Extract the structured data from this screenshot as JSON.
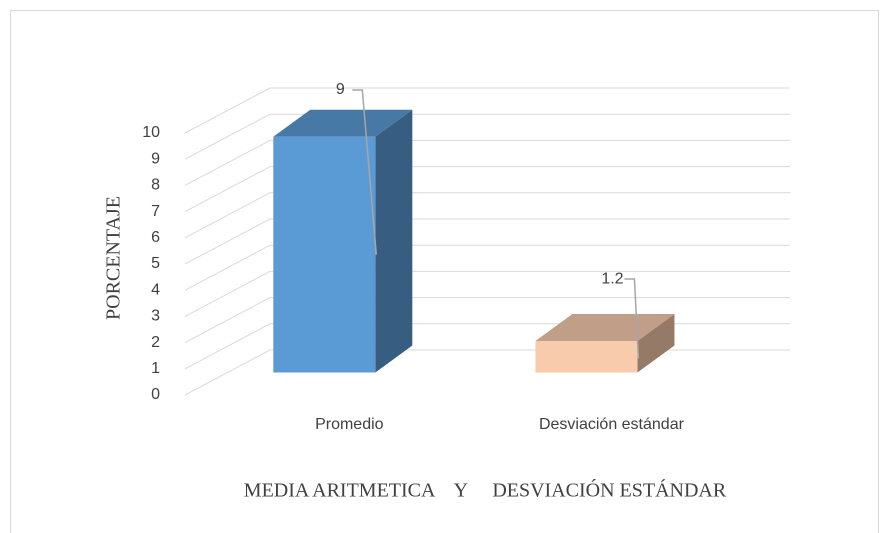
{
  "chart_data": {
    "type": "bar3d",
    "y_axis_label": "PORCENTAJE",
    "x_axis_label": "MEDIA ARITMETICA    Y     DESVIACIÓN ESTÁNDAR",
    "categories": [
      "Promedio",
      "Desviación estándar"
    ],
    "values": [
      9,
      1.2
    ],
    "colors": [
      "#5b9bd5",
      "#f8cbad"
    ],
    "ylim": [
      0,
      10
    ],
    "yticks": [
      0,
      1,
      2,
      3,
      4,
      5,
      6,
      7,
      8,
      9,
      10
    ],
    "grid": true
  }
}
